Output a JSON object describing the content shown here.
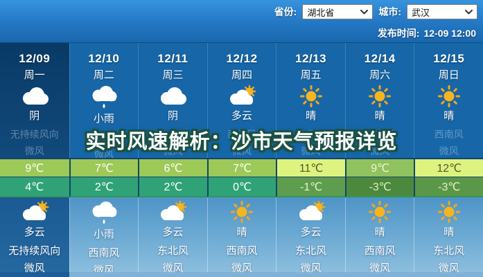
{
  "header": {
    "province_label": "省份:",
    "province_value": "湖北省",
    "city_label": "城市:",
    "city_value": "武汉",
    "publish_label": "发布时间:",
    "publish_time": "12-09 12:00"
  },
  "headline": "实时风速解析：沙市天气预报详览",
  "forecast": {
    "columns": [
      {
        "date": "12/09",
        "weekday": "周一",
        "day_icon": "cloud-icon",
        "day_condition": "阴",
        "day_wind_direction": "无持续风向",
        "day_wind_force": "微风",
        "high_temp": "9℃",
        "low_temp": "4℃",
        "night_icon": "sun-cloud-icon",
        "night_condition": "多云",
        "night_wind_direction": "无持续风向",
        "night_wind_force": "微风"
      },
      {
        "date": "12/10",
        "weekday": "周二",
        "day_icon": "rain-cloud-icon",
        "day_condition": "小雨",
        "day_wind_direction": "西南风",
        "day_wind_force": "微风",
        "high_temp": "7℃",
        "low_temp": "2℃",
        "night_icon": "rain-cloud-icon",
        "night_condition": "小雨",
        "night_wind_direction": "西南风",
        "night_wind_force": "微风"
      },
      {
        "date": "12/11",
        "weekday": "周三",
        "day_icon": "cloud-icon",
        "day_condition": "阴",
        "day_wind_direction": "东北风",
        "day_wind_force": "微风",
        "high_temp": "6℃",
        "low_temp": "2℃",
        "night_icon": "sun-cloud-icon",
        "night_condition": "多云",
        "night_wind_direction": "东北风",
        "night_wind_force": "微风"
      },
      {
        "date": "12/12",
        "weekday": "周四",
        "day_icon": "sun-cloud-icon",
        "day_condition": "多云",
        "day_wind_direction": "西南风",
        "day_wind_force": "微风",
        "high_temp": "7℃",
        "low_temp": "0℃",
        "night_icon": "sun-icon",
        "night_condition": "晴",
        "night_wind_direction": "西南风",
        "night_wind_force": "微风"
      },
      {
        "date": "12/13",
        "weekday": "周五",
        "day_icon": "sun-icon",
        "day_condition": "晴",
        "day_wind_direction": "东北风",
        "day_wind_force": "微风",
        "high_temp": "11℃",
        "low_temp": "-1℃",
        "night_icon": "sun-cloud-icon",
        "night_condition": "多云",
        "night_wind_direction": "东北风",
        "night_wind_force": "微风"
      },
      {
        "date": "12/14",
        "weekday": "周六",
        "day_icon": "sun-icon",
        "day_condition": "晴",
        "day_wind_direction": "西南风",
        "day_wind_force": "微风",
        "high_temp": "9℃",
        "low_temp": "-3℃",
        "night_icon": "sun-icon",
        "night_condition": "晴",
        "night_wind_direction": "西南风",
        "night_wind_force": "微风"
      },
      {
        "date": "12/15",
        "weekday": "周日",
        "day_icon": "sun-icon",
        "day_condition": "晴",
        "day_wind_direction": "西南风",
        "day_wind_force": "微风",
        "high_temp": "12℃",
        "low_temp": "-3℃",
        "night_icon": "sun-icon",
        "night_condition": "晴",
        "night_wind_direction": "东北风",
        "night_wind_force": "微风"
      }
    ],
    "colors": {
      "high_bg": [
        "#9dc958",
        "#9dc958",
        "#9dc958",
        "#9dc958",
        "#def37f",
        "#90c35f",
        "#def37f"
      ],
      "high_text": [
        "#ffffff",
        "#ffffff",
        "#ffffff",
        "#ffffff",
        "#4c5a2a",
        "#eef7d0",
        "#4c5a2a"
      ],
      "low_bg": [
        "#2fa377",
        "#2fa377",
        "#2fa377",
        "#2fa377",
        "#5f9d4e",
        "#4c893d",
        "#5b9749"
      ],
      "low_text": [
        "#ffffff",
        "#ffffff",
        "#ffffff",
        "#ffffff",
        "#e9f4c4",
        "#dff0c0",
        "#e9f4c4"
      ]
    }
  }
}
